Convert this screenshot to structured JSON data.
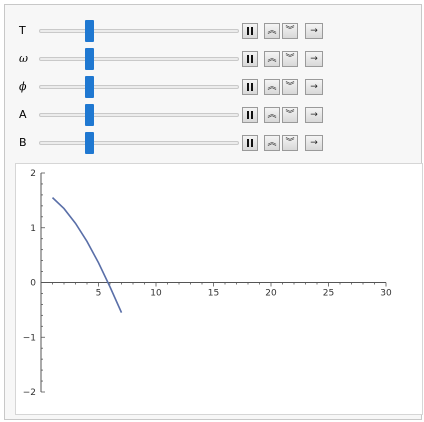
{
  "controls": [
    {
      "label": "T",
      "italic": false,
      "value_fraction": 0.24
    },
    {
      "label": "ω",
      "italic": true,
      "value_fraction": 0.24
    },
    {
      "label": "ϕ",
      "italic": true,
      "value_fraction": 0.24
    },
    {
      "label": "A",
      "italic": false,
      "value_fraction": 0.24
    },
    {
      "label": "B",
      "italic": false,
      "value_fraction": 0.24
    }
  ],
  "animator_buttons": {
    "pause": "pause-icon",
    "faster": "double-chevron-up-icon",
    "slower": "double-chevron-down-icon",
    "direction": "arrow-right-icon"
  },
  "chart_data": {
    "type": "line",
    "xlim": [
      0,
      30
    ],
    "ylim": [
      -2,
      2
    ],
    "x_ticks": [
      5,
      10,
      15,
      20,
      25,
      30
    ],
    "y_ticks": [
      -2,
      -1,
      0,
      1,
      2
    ],
    "grid": false,
    "series": [
      {
        "color": "#5a6fa8",
        "x": [
          1,
          2,
          3,
          4,
          5,
          6,
          7
        ],
        "y": [
          1.55,
          1.35,
          1.08,
          0.75,
          0.36,
          -0.08,
          -0.55
        ]
      }
    ]
  }
}
